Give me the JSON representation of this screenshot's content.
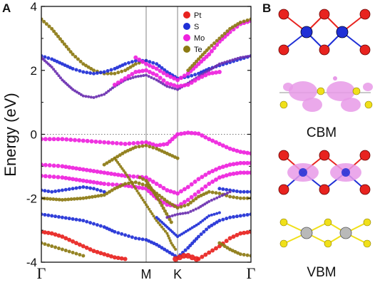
{
  "figure": {
    "panel_a_label": "A",
    "panel_b_label": "B"
  },
  "chart_data": {
    "type": "scatter",
    "subtype": "fat-band structure",
    "title": "",
    "xlabel": "",
    "ylabel": "Energy (eV)",
    "ylim": [
      -4,
      4
    ],
    "yticks": [
      -4,
      -2,
      0,
      2,
      4
    ],
    "xticks": [
      {
        "label": "Γ",
        "k": 0.0
      },
      {
        "label": "M",
        "k": 0.5
      },
      {
        "label": "K",
        "k": 0.65
      },
      {
        "label": "Γ",
        "k": 1.0
      }
    ],
    "fermi_level": 0,
    "legend_position": "top-right",
    "legend": [
      {
        "name": "Pt",
        "color": "#e8231f"
      },
      {
        "name": "S",
        "color": "#1f2fd6"
      },
      {
        "name": "Mo",
        "color": "#ee22dd"
      },
      {
        "name": "Te",
        "color": "#8c7a12"
      }
    ],
    "bands": [
      {
        "color": "#8c7a12",
        "size": 5,
        "points": [
          [
            0,
            3.6
          ],
          [
            0.05,
            3.3
          ],
          [
            0.1,
            2.9
          ],
          [
            0.15,
            2.5
          ],
          [
            0.2,
            2.2
          ],
          [
            0.25,
            2.0
          ],
          [
            0.3,
            1.9
          ],
          [
            0.35,
            1.9
          ],
          [
            0.4,
            2.0
          ],
          [
            0.45,
            2.2
          ],
          [
            0.5,
            2.3
          ]
        ]
      },
      {
        "color": "#1f2fd6",
        "size": 5,
        "points": [
          [
            0,
            2.45
          ],
          [
            0.05,
            2.35
          ],
          [
            0.1,
            2.2
          ],
          [
            0.15,
            2.05
          ],
          [
            0.2,
            1.95
          ],
          [
            0.25,
            1.9
          ],
          [
            0.3,
            1.95
          ],
          [
            0.35,
            2.05
          ],
          [
            0.4,
            2.2
          ],
          [
            0.45,
            2.3
          ],
          [
            0.5,
            2.3
          ],
          [
            0.55,
            2.2
          ],
          [
            0.6,
            1.95
          ],
          [
            0.65,
            1.75
          ],
          [
            0.7,
            1.8
          ],
          [
            0.75,
            1.9
          ],
          [
            0.8,
            2.05
          ],
          [
            0.85,
            2.15
          ],
          [
            0.9,
            2.25
          ],
          [
            0.95,
            2.35
          ],
          [
            1.0,
            2.45
          ]
        ]
      },
      {
        "color": "#6a2fb0",
        "size": 4,
        "points": [
          [
            0,
            2.4
          ],
          [
            0.05,
            2.1
          ],
          [
            0.1,
            1.7
          ],
          [
            0.15,
            1.4
          ],
          [
            0.2,
            1.2
          ],
          [
            0.25,
            1.15
          ],
          [
            0.3,
            1.25
          ],
          [
            0.35,
            1.5
          ],
          [
            0.4,
            1.7
          ],
          [
            0.45,
            1.8
          ],
          [
            0.5,
            1.85
          ],
          [
            0.55,
            1.7
          ],
          [
            0.6,
            1.5
          ],
          [
            0.65,
            1.4
          ],
          [
            0.7,
            1.6
          ],
          [
            0.75,
            1.8
          ],
          [
            0.8,
            2.0
          ],
          [
            0.85,
            2.2
          ],
          [
            0.9,
            2.3
          ],
          [
            0.95,
            2.4
          ],
          [
            1.0,
            2.45
          ]
        ]
      },
      {
        "color": "#ee22dd",
        "size": 6,
        "points": [
          [
            0.35,
            1.55
          ],
          [
            0.4,
            1.75
          ],
          [
            0.45,
            1.95
          ],
          [
            0.5,
            2.0
          ],
          [
            0.55,
            1.85
          ],
          [
            0.6,
            1.6
          ],
          [
            0.65,
            1.5
          ],
          [
            0.7,
            1.55
          ],
          [
            0.75,
            1.75
          ],
          [
            0.8,
            1.9
          ],
          [
            0.85,
            1.95
          ]
        ]
      },
      {
        "color": "#ee22dd",
        "size": 6,
        "points": [
          [
            0.45,
            2.4
          ],
          [
            0.5,
            2.2
          ],
          [
            0.55,
            2.05
          ],
          [
            0.6,
            1.85
          ],
          [
            0.65,
            1.7
          ],
          [
            0.7,
            1.9
          ],
          [
            0.75,
            2.2
          ],
          [
            0.8,
            2.5
          ],
          [
            0.85,
            2.9
          ],
          [
            0.9,
            3.2
          ],
          [
            0.95,
            3.45
          ],
          [
            1.0,
            3.55
          ]
        ]
      },
      {
        "color": "#8c7a12",
        "size": 5,
        "points": [
          [
            0.7,
            2.0
          ],
          [
            0.75,
            2.35
          ],
          [
            0.8,
            2.7
          ],
          [
            0.85,
            3.0
          ],
          [
            0.9,
            3.3
          ],
          [
            0.95,
            3.5
          ],
          [
            1.0,
            3.6
          ]
        ]
      },
      {
        "color": "#ee22dd",
        "size": 6,
        "points": [
          [
            0,
            -0.15
          ],
          [
            0.1,
            -0.15
          ],
          [
            0.2,
            -0.2
          ],
          [
            0.3,
            -0.25
          ],
          [
            0.4,
            -0.3
          ],
          [
            0.5,
            -0.25
          ],
          [
            0.55,
            -0.35
          ],
          [
            0.6,
            -0.3
          ],
          [
            0.65,
            0.0
          ],
          [
            0.7,
            0.05
          ],
          [
            0.75,
            0.02
          ],
          [
            0.8,
            -0.15
          ],
          [
            0.85,
            -0.3
          ],
          [
            0.9,
            -0.45
          ],
          [
            0.95,
            -0.55
          ],
          [
            1.0,
            -0.6
          ]
        ]
      },
      {
        "color": "#ee22dd",
        "size": 6,
        "points": [
          [
            0,
            -0.95
          ],
          [
            0.1,
            -1.0
          ],
          [
            0.2,
            -1.1
          ],
          [
            0.3,
            -1.2
          ],
          [
            0.4,
            -1.3
          ],
          [
            0.5,
            -1.35
          ],
          [
            0.55,
            -1.55
          ],
          [
            0.6,
            -1.75
          ],
          [
            0.65,
            -1.85
          ],
          [
            0.7,
            -1.65
          ],
          [
            0.75,
            -1.4
          ],
          [
            0.8,
            -1.2
          ],
          [
            0.85,
            -1.05
          ],
          [
            0.9,
            -0.95
          ],
          [
            0.95,
            -0.9
          ],
          [
            1.0,
            -0.9
          ]
        ]
      },
      {
        "color": "#8c7a12",
        "size": 5,
        "points": [
          [
            0.3,
            -0.95
          ],
          [
            0.35,
            -0.75
          ],
          [
            0.4,
            -0.55
          ],
          [
            0.45,
            -0.4
          ],
          [
            0.5,
            -0.35
          ],
          [
            0.55,
            -0.45
          ],
          [
            0.6,
            -0.6
          ],
          [
            0.65,
            -0.75
          ]
        ]
      },
      {
        "color": "#ee22dd",
        "size": 6,
        "points": [
          [
            0,
            -1.3
          ],
          [
            0.1,
            -1.35
          ],
          [
            0.2,
            -1.45
          ],
          [
            0.3,
            -1.55
          ],
          [
            0.4,
            -1.6
          ],
          [
            0.5,
            -1.7
          ],
          [
            0.55,
            -2.0
          ],
          [
            0.6,
            -2.2
          ],
          [
            0.65,
            -2.25
          ],
          [
            0.7,
            -2.05
          ],
          [
            0.75,
            -1.8
          ],
          [
            0.8,
            -1.55
          ],
          [
            0.85,
            -1.35
          ],
          [
            0.9,
            -1.25
          ],
          [
            0.95,
            -1.2
          ],
          [
            1.0,
            -1.2
          ]
        ]
      },
      {
        "color": "#1f2fd6",
        "size": 5,
        "points": [
          [
            0,
            -1.75
          ],
          [
            0.05,
            -1.8
          ],
          [
            0.1,
            -1.75
          ],
          [
            0.15,
            -1.7
          ],
          [
            0.2,
            -1.65
          ],
          [
            0.25,
            -1.7
          ],
          [
            0.3,
            -1.8
          ]
        ]
      },
      {
        "color": "#1f2fd6",
        "size": 5,
        "points": [
          [
            0.85,
            -1.7
          ],
          [
            0.9,
            -1.75
          ],
          [
            0.95,
            -1.8
          ],
          [
            1.0,
            -1.8
          ]
        ]
      },
      {
        "color": "#8c7a12",
        "size": 5,
        "points": [
          [
            0,
            -2.0
          ],
          [
            0.1,
            -2.05
          ],
          [
            0.2,
            -2.0
          ],
          [
            0.3,
            -1.9
          ],
          [
            0.35,
            -1.7
          ],
          [
            0.4,
            -1.55
          ],
          [
            0.45,
            -1.5
          ],
          [
            0.5,
            -1.6
          ],
          [
            0.55,
            -1.85
          ],
          [
            0.6,
            -2.1
          ],
          [
            0.65,
            -2.3
          ],
          [
            0.7,
            -2.2
          ],
          [
            0.75,
            -1.95
          ],
          [
            0.8,
            -1.8
          ],
          [
            0.85,
            -1.85
          ],
          [
            0.9,
            -1.95
          ],
          [
            0.95,
            -2.0
          ],
          [
            1.0,
            -2.0
          ]
        ]
      },
      {
        "color": "#8c7a12",
        "size": 5,
        "points": [
          [
            0.47,
            -1.35
          ],
          [
            0.5,
            -1.45
          ],
          [
            0.53,
            -1.75
          ],
          [
            0.56,
            -2.05
          ],
          [
            0.59,
            -2.4
          ],
          [
            0.62,
            -2.75
          ]
        ]
      },
      {
        "color": "#8c7a12",
        "size": 4,
        "points": [
          [
            0.35,
            -0.75
          ],
          [
            0.4,
            -1.2
          ],
          [
            0.45,
            -1.7
          ],
          [
            0.5,
            -2.2
          ],
          [
            0.55,
            -2.7
          ],
          [
            0.6,
            -3.1
          ],
          [
            0.62,
            -3.4
          ],
          [
            0.64,
            -3.6
          ]
        ]
      },
      {
        "color": "#1f2fd6",
        "size": 5,
        "points": [
          [
            0,
            -2.5
          ],
          [
            0.05,
            -2.55
          ],
          [
            0.1,
            -2.6
          ],
          [
            0.15,
            -2.65
          ],
          [
            0.2,
            -2.7
          ],
          [
            0.25,
            -2.8
          ],
          [
            0.3,
            -2.9
          ],
          [
            0.35,
            -3.05
          ],
          [
            0.4,
            -3.15
          ],
          [
            0.45,
            -3.25
          ],
          [
            0.5,
            -3.3
          ],
          [
            0.55,
            -3.45
          ],
          [
            0.6,
            -3.65
          ],
          [
            0.65,
            -3.85
          ],
          [
            0.7,
            -3.55
          ],
          [
            0.75,
            -3.2
          ],
          [
            0.8,
            -2.9
          ],
          [
            0.85,
            -2.7
          ],
          [
            0.9,
            -2.6
          ],
          [
            0.95,
            -2.55
          ],
          [
            1.0,
            -2.5
          ]
        ]
      },
      {
        "color": "#e8231f",
        "size": 6,
        "points": [
          [
            0,
            -3.05
          ],
          [
            0.05,
            -3.1
          ],
          [
            0.1,
            -3.2
          ],
          [
            0.15,
            -3.35
          ],
          [
            0.2,
            -3.5
          ],
          [
            0.25,
            -3.65
          ],
          [
            0.3,
            -3.75
          ],
          [
            0.35,
            -3.85
          ],
          [
            0.4,
            -3.9
          ]
        ]
      },
      {
        "color": "#e8231f",
        "size": 6,
        "points": [
          [
            0.75,
            -3.9
          ],
          [
            0.8,
            -3.7
          ],
          [
            0.85,
            -3.5
          ],
          [
            0.9,
            -3.25
          ],
          [
            0.95,
            -3.1
          ],
          [
            1.0,
            -3.05
          ]
        ]
      },
      {
        "color": "#e8231f",
        "size": 8,
        "points": [
          [
            0.64,
            -3.9
          ],
          [
            0.66,
            -3.85
          ],
          [
            0.68,
            -3.8
          ],
          [
            0.7,
            -3.8
          ],
          [
            0.72,
            -3.85
          ],
          [
            0.74,
            -3.9
          ]
        ]
      },
      {
        "color": "#8c7a12",
        "size": 5,
        "points": [
          [
            0,
            -3.4
          ],
          [
            0.05,
            -3.5
          ],
          [
            0.1,
            -3.6
          ],
          [
            0.15,
            -3.7
          ],
          [
            0.2,
            -3.8
          ]
        ]
      },
      {
        "color": "#8c7a12",
        "size": 5,
        "points": [
          [
            0.85,
            -3.4
          ],
          [
            0.9,
            -3.6
          ],
          [
            0.95,
            -3.75
          ],
          [
            1.0,
            -3.8
          ]
        ]
      },
      {
        "color": "#6a2fb0",
        "size": 4,
        "points": [
          [
            0.6,
            -2.6
          ],
          [
            0.65,
            -2.5
          ],
          [
            0.7,
            -2.45
          ],
          [
            0.75,
            -2.3
          ],
          [
            0.8,
            -2.1
          ],
          [
            0.85,
            -1.95
          ],
          [
            0.9,
            -1.8
          ]
        ]
      },
      {
        "color": "#1f2fd6",
        "size": 4,
        "points": [
          [
            0.55,
            -2.6
          ],
          [
            0.6,
            -2.9
          ],
          [
            0.65,
            -3.2
          ],
          [
            0.7,
            -3.0
          ],
          [
            0.75,
            -2.8
          ],
          [
            0.8,
            -2.55
          ],
          [
            0.85,
            -2.45
          ]
        ]
      }
    ]
  },
  "panel_b": {
    "label_cbm": "CBM",
    "label_vbm": "VBM"
  }
}
